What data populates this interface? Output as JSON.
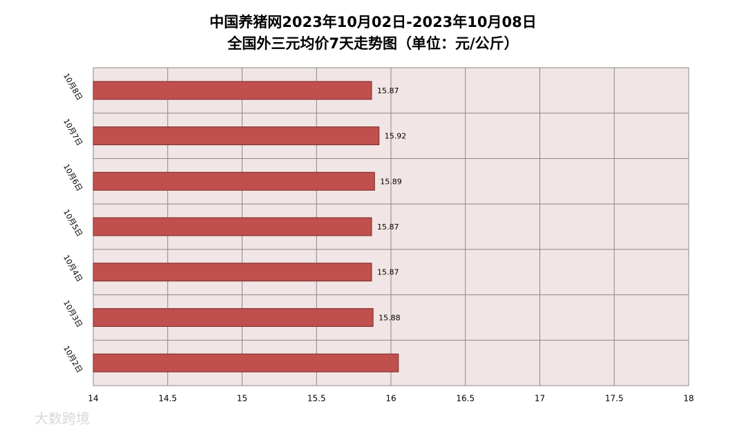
{
  "chart_data": {
    "type": "bar",
    "orientation": "horizontal",
    "title": "中国养猪网2023年10月02日-2023年10月08日",
    "subtitle": "全国外三元均价7天走势图（单位：元/公斤）",
    "categories": [
      "10月8日",
      "10月7日",
      "10月6日",
      "10月5日",
      "10月4日",
      "10月3日",
      "10月2日"
    ],
    "values": [
      15.87,
      15.92,
      15.89,
      15.87,
      15.87,
      15.88,
      16.05
    ],
    "value_labels": [
      "15.87",
      "15.92",
      "15.89",
      "15.87",
      "15.87",
      "15.88",
      null
    ],
    "color": "#c0504d",
    "xlim": [
      14,
      18
    ],
    "xticks": [
      14,
      14.5,
      15,
      15.5,
      16,
      16.5,
      17,
      17.5,
      18
    ],
    "grid": true
  },
  "watermark": "大数跨境"
}
